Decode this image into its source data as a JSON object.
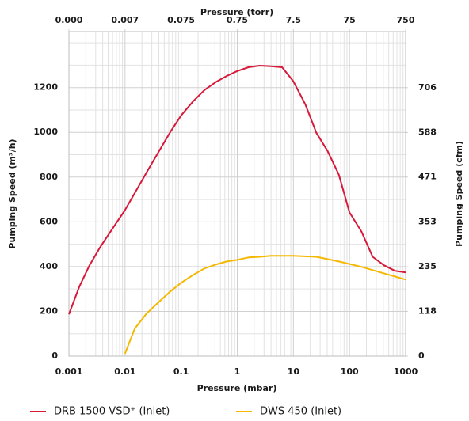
{
  "chart_data": {
    "type": "line",
    "xlabel": "Pressure (mbar)",
    "x2label": "Pressure (torr)",
    "ylabel": "Pumping Speed (m³/h)",
    "y2label": "Pumping Speed (cfm)",
    "xscale": "log",
    "xlim": [
      0.001,
      1000
    ],
    "xticks": [
      0.001,
      0.01,
      0.1,
      1,
      10,
      100,
      1000
    ],
    "minor_xticks": [
      0.002,
      0.003,
      0.004,
      0.005,
      0.006,
      0.007,
      0.008,
      0.009,
      0.02,
      0.03,
      0.04,
      0.05,
      0.06,
      0.07,
      0.08,
      0.09,
      0.2,
      0.3,
      0.4,
      0.5,
      0.6,
      0.7,
      0.8,
      0.9,
      2,
      3,
      4,
      5,
      6,
      7,
      8,
      9,
      20,
      30,
      40,
      50,
      60,
      70,
      80,
      90,
      200,
      300,
      400,
      500,
      600,
      700,
      800,
      900
    ],
    "x2ticks": [
      {
        "value": 0.001,
        "label": "0.000"
      },
      {
        "value": 0.01,
        "label": "0.007"
      },
      {
        "value": 0.1,
        "label": "0.075"
      },
      {
        "value": 1,
        "label": "0.75"
      },
      {
        "value": 10,
        "label": "7.5"
      },
      {
        "value": 100,
        "label": "75"
      },
      {
        "value": 1000,
        "label": "750"
      }
    ],
    "ylim": [
      0,
      1450
    ],
    "yticks": [
      0,
      200,
      400,
      600,
      800,
      1000,
      1200
    ],
    "minor_yticks": [
      100,
      300,
      500,
      700,
      900,
      1100,
      1300,
      1400
    ],
    "y2lim": [
      0,
      853.4
    ],
    "y2ticks": [
      0,
      118,
      235,
      353,
      471,
      588,
      706
    ],
    "grid": true,
    "legend": "bottom",
    "series": [
      {
        "name": "DRB 1500 VSD⁺ (Inlet)",
        "color": "#d7193a",
        "x": [
          0.001,
          0.00153,
          0.00233,
          0.00367,
          0.00618,
          0.01,
          0.0159,
          0.0258,
          0.0405,
          0.0641,
          0.1,
          0.164,
          0.26,
          0.41,
          0.652,
          1,
          1.58,
          2.5,
          3.97,
          6.3,
          10,
          16.3,
          25.6,
          40.6,
          64.6,
          100,
          163,
          259,
          410,
          650,
          1000
        ],
        "values": [
          187,
          310,
          406,
          490,
          575,
          653,
          741,
          833,
          917,
          1002,
          1076,
          1139,
          1189,
          1224,
          1252,
          1274,
          1291,
          1298,
          1295,
          1291,
          1228,
          1125,
          998,
          917,
          811,
          642,
          557,
          444,
          406,
          381,
          374
        ]
      },
      {
        "name": "DWS 450 (Inlet)",
        "color": "#f5b800",
        "x": [
          0.01,
          0.0149,
          0.0241,
          0.0392,
          0.0641,
          0.1,
          0.164,
          0.26,
          0.41,
          0.652,
          1,
          1.58,
          2.5,
          3.97,
          10,
          25.6,
          64.6,
          163,
          410,
          1000
        ],
        "values": [
          11,
          123,
          190,
          240,
          289,
          328,
          363,
          392,
          409,
          423,
          430,
          441,
          444,
          448,
          448,
          444,
          423,
          399,
          370,
          342
        ]
      }
    ]
  }
}
